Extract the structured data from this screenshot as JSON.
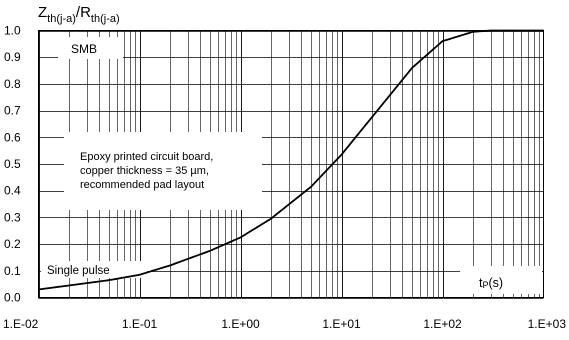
{
  "chart_data": {
    "type": "line",
    "title": {
      "numerator_main": "Z",
      "numerator_sub": "th(j-a)",
      "slash": "/",
      "denominator_main": "R",
      "denominator_sub": "th(j-a)"
    },
    "x_scale": "log",
    "xlim": [
      0.01,
      1000
    ],
    "ylim": [
      0,
      1
    ],
    "grid": true,
    "x_tick_labels": [
      "1.E-02",
      "1.E-01",
      "1.E+00",
      "1.E+01",
      "1.E+02",
      "1.E+03"
    ],
    "y_tick_labels": [
      "0.0",
      "0.1",
      "0.2",
      "0.3",
      "0.4",
      "0.5",
      "0.6",
      "0.7",
      "0.8",
      "0.9",
      "1.0"
    ],
    "annotations": {
      "package": "SMB",
      "board_line1": "Epoxy printed circuit board,",
      "board_line2": "copper thickness = 35 µm,",
      "board_line3": "recommended pad layout",
      "pulse": "Single pulse",
      "x_unit_main": "t",
      "x_unit_sub": "P",
      "x_unit_suffix": "(s)"
    },
    "series": [
      {
        "x": [
          0.01,
          0.02,
          0.05,
          0.1,
          0.2,
          0.5,
          1,
          2,
          5,
          10,
          20,
          50,
          100,
          200,
          300,
          1000
        ],
        "values": [
          0.03,
          0.045,
          0.065,
          0.085,
          0.12,
          0.175,
          0.225,
          0.295,
          0.415,
          0.535,
          0.675,
          0.86,
          0.96,
          0.995,
          1.0,
          1.0
        ]
      }
    ]
  }
}
